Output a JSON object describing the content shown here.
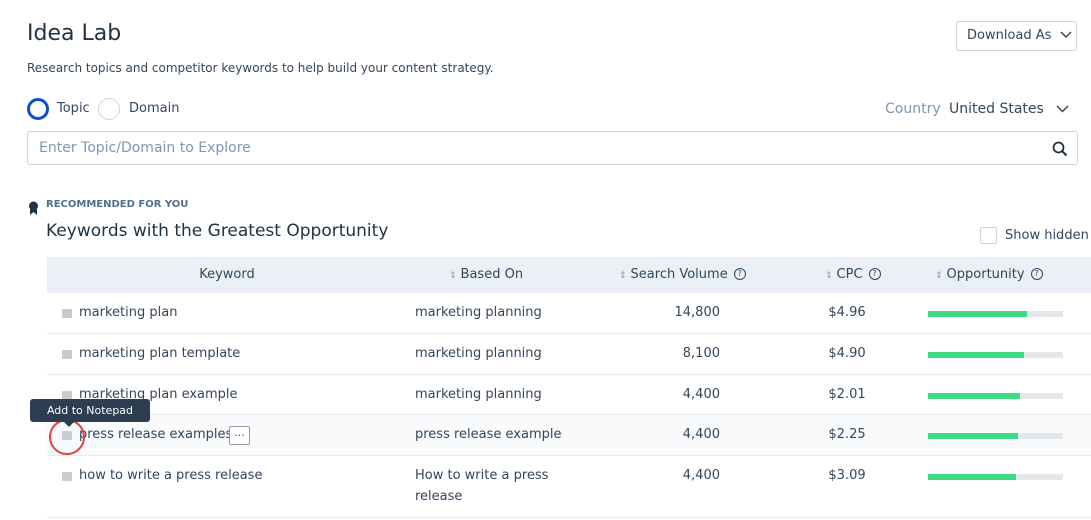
{
  "header": {
    "title": "Idea Lab",
    "subtitle": "Research topics and competitor keywords to help build your content strategy.",
    "download_button": "Download As"
  },
  "search": {
    "mode_options": [
      "Topic",
      "Domain"
    ],
    "selected_mode": 0,
    "country_label": "Country",
    "country_value": "United States",
    "placeholder": "Enter Topic/Domain to Explore"
  },
  "section": {
    "eyebrow": "RECOMMENDED FOR YOU",
    "title": "Keywords with the Greatest Opportunity",
    "show_hidden": "Show hidden"
  },
  "table": {
    "columns": [
      "Keyword",
      "Based On",
      "Search Volume",
      "CPC",
      "Opportunity"
    ],
    "opportunity_range": [
      0,
      100
    ],
    "rows": [
      {
        "keyword": "marketing plan",
        "based_on": "marketing planning",
        "search_volume": "14,800",
        "cpc": "$4.96",
        "opportunity": 73
      },
      {
        "keyword": "marketing plan template",
        "based_on": "marketing planning",
        "search_volume": "8,100",
        "cpc": "$4.90",
        "opportunity": 71
      },
      {
        "keyword": "marketing plan example",
        "based_on": "marketing planning",
        "search_volume": "4,400",
        "cpc": "$2.01",
        "opportunity": 68
      },
      {
        "keyword": "press release examples",
        "based_on": "press release example",
        "search_volume": "4,400",
        "cpc": "$2.25",
        "opportunity": 67
      },
      {
        "keyword": "how to write a press release",
        "based_on": "How to write a press release",
        "search_volume": "4,400",
        "cpc": "$3.09",
        "opportunity": 65
      }
    ]
  },
  "tooltip": {
    "text": "Add to Notepad",
    "row": 3,
    "more_button": "..."
  }
}
